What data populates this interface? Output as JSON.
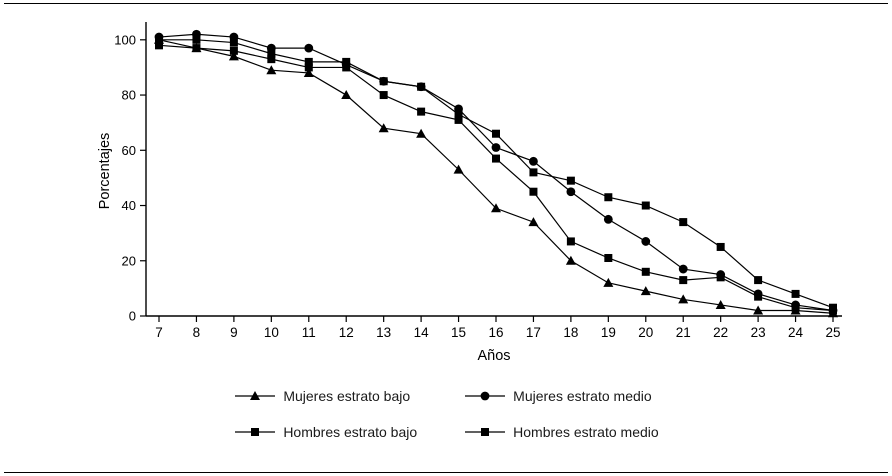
{
  "figure": {
    "title": ""
  },
  "chart_data": {
    "type": "line",
    "title": "",
    "xlabel": "Años",
    "ylabel": "Porcentajes",
    "x": [
      7,
      8,
      9,
      10,
      11,
      12,
      13,
      14,
      15,
      16,
      17,
      18,
      19,
      20,
      21,
      22,
      23,
      24,
      25
    ],
    "ylim": [
      0,
      105
    ],
    "yticks": [
      0,
      20,
      40,
      60,
      80,
      100
    ],
    "grid": false,
    "legend_position": "bottom",
    "line_color": "#000000",
    "series": [
      {
        "name": "Mujeres estrato bajo",
        "marker": "triangle",
        "values": [
          100,
          97,
          94,
          89,
          88,
          80,
          68,
          66,
          53,
          39,
          34,
          20,
          12,
          9,
          6,
          4,
          2,
          2,
          1
        ]
      },
      {
        "name": "Mujeres estrato medio",
        "marker": "circle",
        "values": [
          101,
          102,
          101,
          97,
          97,
          91,
          85,
          83,
          75,
          61,
          56,
          45,
          35,
          27,
          17,
          15,
          8,
          4,
          2
        ]
      },
      {
        "name": "Hombres estrato bajo",
        "marker": "square",
        "values": [
          98,
          97,
          96,
          93,
          90,
          90,
          80,
          74,
          71,
          57,
          45,
          27,
          21,
          16,
          13,
          14,
          7,
          3,
          2
        ]
      },
      {
        "name": "Hombres estrato medio",
        "marker": "square",
        "values": [
          100,
          100,
          99,
          95,
          92,
          92,
          85,
          83,
          73,
          66,
          52,
          49,
          43,
          40,
          34,
          25,
          13,
          8,
          3
        ]
      }
    ]
  }
}
